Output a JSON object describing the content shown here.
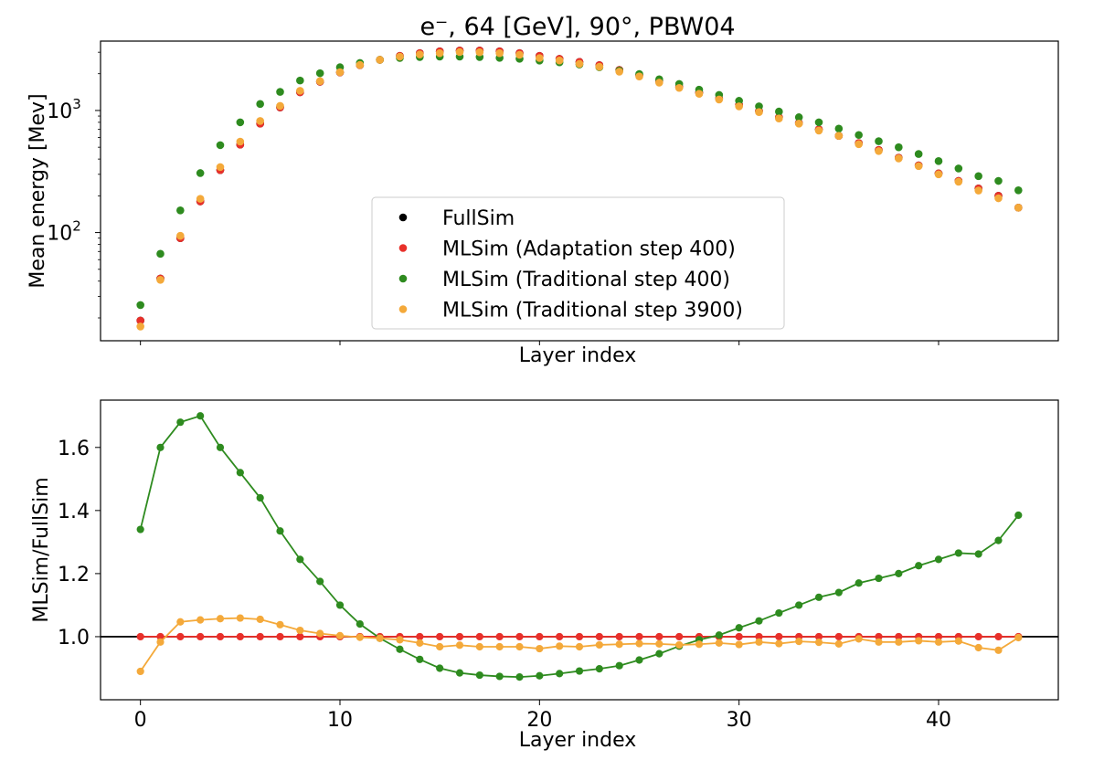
{
  "chart_data": [
    {
      "type": "scatter",
      "title": "e⁻, 64 [GeV], 90°, PBW04",
      "xlabel": "Layer index",
      "ylabel": "Mean energy [Mev]",
      "yscale": "log",
      "xlim": [
        -2,
        46
      ],
      "ylim": [
        13,
        3700
      ],
      "ytick_labels": [
        {
          "value": 100,
          "base": "10",
          "exp": "2"
        },
        {
          "value": 1000,
          "base": "10",
          "exp": "3"
        }
      ],
      "x": [
        0,
        1,
        2,
        3,
        4,
        5,
        6,
        7,
        8,
        9,
        10,
        11,
        12,
        13,
        14,
        15,
        16,
        17,
        18,
        19,
        20,
        21,
        22,
        23,
        24,
        25,
        26,
        27,
        28,
        29,
        30,
        31,
        32,
        33,
        34,
        35,
        36,
        37,
        38,
        39,
        40,
        41,
        42,
        43,
        44
      ],
      "series": [
        {
          "name": "FullSim",
          "color": "#000000",
          "values": [
            19,
            42,
            90,
            180,
            325,
            525,
            780,
            1060,
            1410,
            1720,
            2050,
            2350,
            2600,
            2800,
            2950,
            3050,
            3100,
            3100,
            3050,
            2950,
            2800,
            2650,
            2500,
            2350,
            2150,
            1950,
            1740,
            1560,
            1400,
            1250,
            1110,
            990,
            880,
            790,
            700,
            620,
            540,
            475,
            410,
            355,
            305,
            265,
            230,
            200,
            160
          ]
        },
        {
          "name": "MLSim (Adaptation step 400)",
          "color": "#e8302a",
          "values": [
            19,
            42,
            90,
            180,
            325,
            525,
            780,
            1060,
            1410,
            1720,
            2050,
            2350,
            2600,
            2800,
            2950,
            3050,
            3100,
            3100,
            3050,
            2950,
            2800,
            2650,
            2500,
            2350,
            2150,
            1950,
            1740,
            1560,
            1400,
            1250,
            1110,
            990,
            880,
            790,
            700,
            620,
            540,
            475,
            410,
            355,
            305,
            265,
            230,
            200,
            160
          ]
        },
        {
          "name": "MLSim (Traditional step 400)",
          "color": "#2e8b1f",
          "values": [
            25.5,
            67,
            152,
            307,
            520,
            800,
            1130,
            1420,
            1760,
            2020,
            2260,
            2450,
            2600,
            2690,
            2740,
            2760,
            2760,
            2740,
            2700,
            2650,
            2560,
            2480,
            2380,
            2260,
            2120,
            1990,
            1800,
            1650,
            1480,
            1340,
            1200,
            1080,
            980,
            880,
            800,
            710,
            630,
            560,
            500,
            440,
            385,
            335,
            290,
            265,
            222
          ]
        },
        {
          "name": "MLSim (Traditional step 3900)",
          "color": "#f4a93a",
          "values": [
            17,
            41,
            94,
            189,
            344,
            556,
            820,
            1090,
            1450,
            1740,
            2060,
            2360,
            2600,
            2760,
            2880,
            2950,
            3010,
            3000,
            2950,
            2860,
            2690,
            2570,
            2410,
            2280,
            2080,
            1900,
            1690,
            1530,
            1370,
            1230,
            1080,
            970,
            860,
            780,
            685,
            620,
            530,
            465,
            405,
            350,
            300,
            261,
            221,
            191,
            160
          ]
        }
      ],
      "legend": {
        "placement": "center-bottom"
      }
    },
    {
      "type": "line",
      "xlabel": "Layer index",
      "ylabel": "MLSim/FullSim",
      "xlim": [
        -2,
        46
      ],
      "ylim": [
        0.8,
        1.75
      ],
      "xticks": [
        0,
        10,
        20,
        30,
        40
      ],
      "yticks": [
        1.0,
        1.2,
        1.4,
        1.6
      ],
      "reference_line": 1.0,
      "x": [
        0,
        1,
        2,
        3,
        4,
        5,
        6,
        7,
        8,
        9,
        10,
        11,
        12,
        13,
        14,
        15,
        16,
        17,
        18,
        19,
        20,
        21,
        22,
        23,
        24,
        25,
        26,
        27,
        28,
        29,
        30,
        31,
        32,
        33,
        34,
        35,
        36,
        37,
        38,
        39,
        40,
        41,
        42,
        43,
        44
      ],
      "series": [
        {
          "name": "MLSim (Adaptation step 400)",
          "color": "#e8302a",
          "values": [
            1.0,
            1.0,
            1.0,
            1.0,
            1.0,
            1.0,
            1.0,
            1.0,
            1.0,
            1.0,
            1.0,
            1.0,
            1.0,
            1.0,
            1.0,
            1.0,
            1.0,
            1.0,
            1.0,
            1.0,
            1.0,
            1.0,
            1.0,
            1.0,
            1.0,
            1.0,
            1.0,
            1.0,
            1.0,
            1.0,
            1.0,
            1.0,
            1.0,
            1.0,
            1.0,
            1.0,
            1.0,
            1.0,
            1.0,
            1.0,
            1.0,
            1.0,
            1.0,
            1.0,
            1.0
          ]
        },
        {
          "name": "MLSim (Traditional step 400)",
          "color": "#2e8b1f",
          "values": [
            1.34,
            1.6,
            1.68,
            1.7,
            1.6,
            1.52,
            1.44,
            1.335,
            1.245,
            1.175,
            1.1,
            1.04,
            0.995,
            0.96,
            0.928,
            0.9,
            0.885,
            0.878,
            0.874,
            0.872,
            0.876,
            0.883,
            0.891,
            0.898,
            0.908,
            0.926,
            0.946,
            0.97,
            0.99,
            1.005,
            1.028,
            1.05,
            1.075,
            1.1,
            1.125,
            1.14,
            1.17,
            1.185,
            1.2,
            1.225,
            1.245,
            1.265,
            1.262,
            1.305,
            1.385
          ]
        },
        {
          "name": "MLSim (Traditional step 3900)",
          "color": "#f4a93a",
          "values": [
            0.89,
            0.983,
            1.047,
            1.053,
            1.057,
            1.059,
            1.055,
            1.038,
            1.02,
            1.01,
            1.003,
            0.998,
            0.995,
            0.99,
            0.98,
            0.968,
            0.973,
            0.968,
            0.968,
            0.968,
            0.962,
            0.97,
            0.968,
            0.974,
            0.976,
            0.978,
            0.977,
            0.974,
            0.976,
            0.98,
            0.975,
            0.983,
            0.978,
            0.985,
            0.982,
            0.977,
            0.993,
            0.983,
            0.983,
            0.987,
            0.983,
            0.986,
            0.965,
            0.957,
            0.997
          ]
        }
      ]
    }
  ]
}
